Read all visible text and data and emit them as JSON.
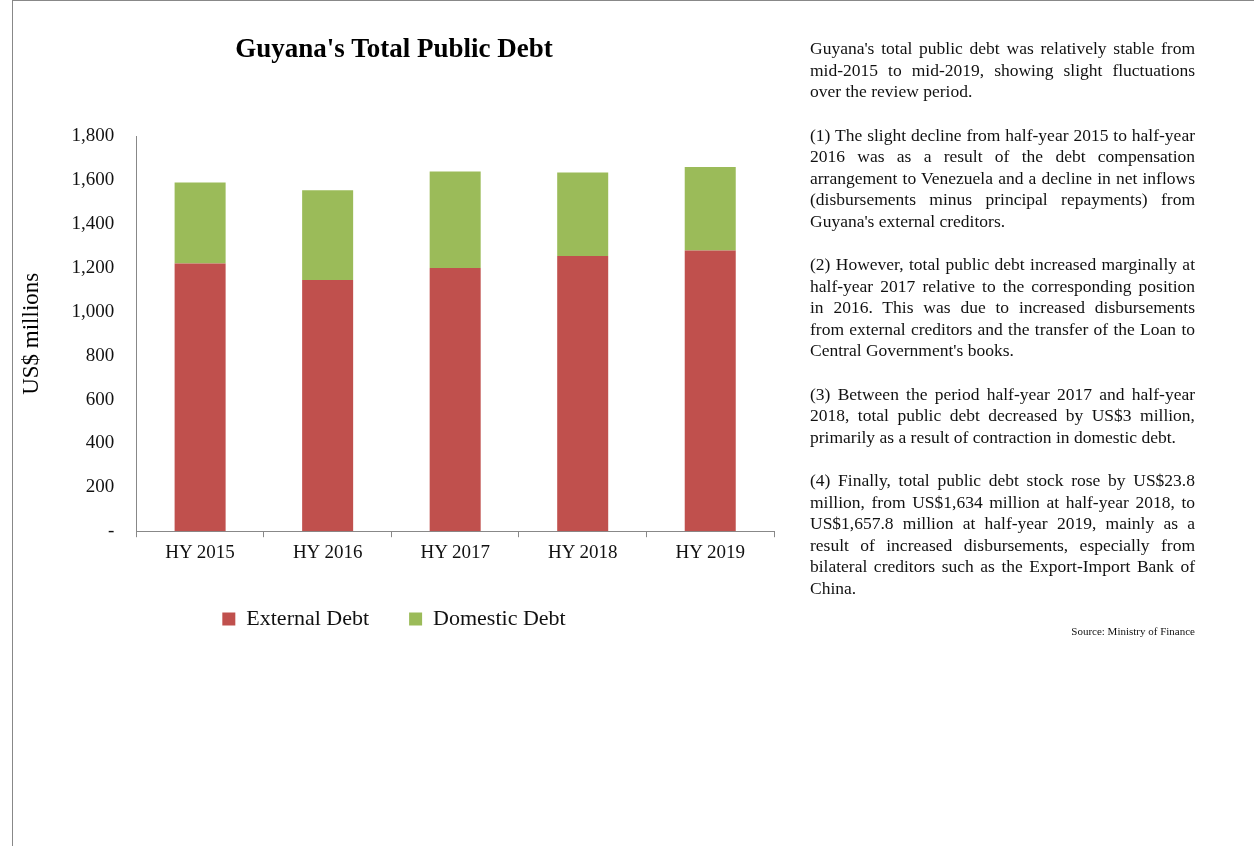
{
  "chart_data": {
    "type": "bar",
    "title": "Guyana's Total Public Debt",
    "ylabel": "US$ millions",
    "categories": [
      "HY 2015",
      "HY 2016",
      "HY 2017",
      "HY 2018",
      "HY 2019"
    ],
    "series": [
      {
        "name": "External Debt",
        "color": "#c0504d",
        "values": [
          1220,
          1145,
          1200,
          1255,
          1280
        ]
      },
      {
        "name": "Domestic Debt",
        "color": "#9bbb59",
        "values": [
          370,
          410,
          440,
          380,
          380
        ]
      }
    ],
    "stacked": true,
    "ylim": [
      0,
      1800
    ],
    "yticks": [
      {
        "value": 0,
        "label": "-"
      },
      {
        "value": 200,
        "label": "200"
      },
      {
        "value": 400,
        "label": "400"
      },
      {
        "value": 600,
        "label": "600"
      },
      {
        "value": 800,
        "label": "800"
      },
      {
        "value": 1000,
        "label": "1,000"
      },
      {
        "value": 1200,
        "label": "1,200"
      },
      {
        "value": 1400,
        "label": "1,400"
      },
      {
        "value": 1600,
        "label": "1,600"
      },
      {
        "value": 1800,
        "label": "1,800"
      }
    ],
    "legend": "bottom",
    "annotations": [
      "Guyana's total public debt was relatively stable from mid-2015 to mid-2019, showing slight fluctuations over the review period.",
      "(1) The slight decline from half-year 2015 to half-year 2016 was as a result of the debt compensation arrangement to Venezuela and a decline in net inflows (disbursements minus principal repayments) from Guyana's external creditors.",
      "(2) However, total public debt increased marginally at half-year 2017 relative to the corresponding position in 2016. This was due to increased disbursements from external creditors and the transfer of the Loan to Central Government's books.",
      "(3) Between the period half-year 2017 and half-year 2018, total public debt decreased by US$3 million,  primarily as a result of contraction in domestic debt.",
      "(4) Finally, total public debt stock rose by US$23.8 million, from US$1,634 million at half-year 2018, to US$1,657.8 million at half-year 2019, mainly as a result of increased disbursements, especially from bilateral creditors such as the Export-Import Bank of China.",
      "Source: Ministry of Finance"
    ]
  }
}
